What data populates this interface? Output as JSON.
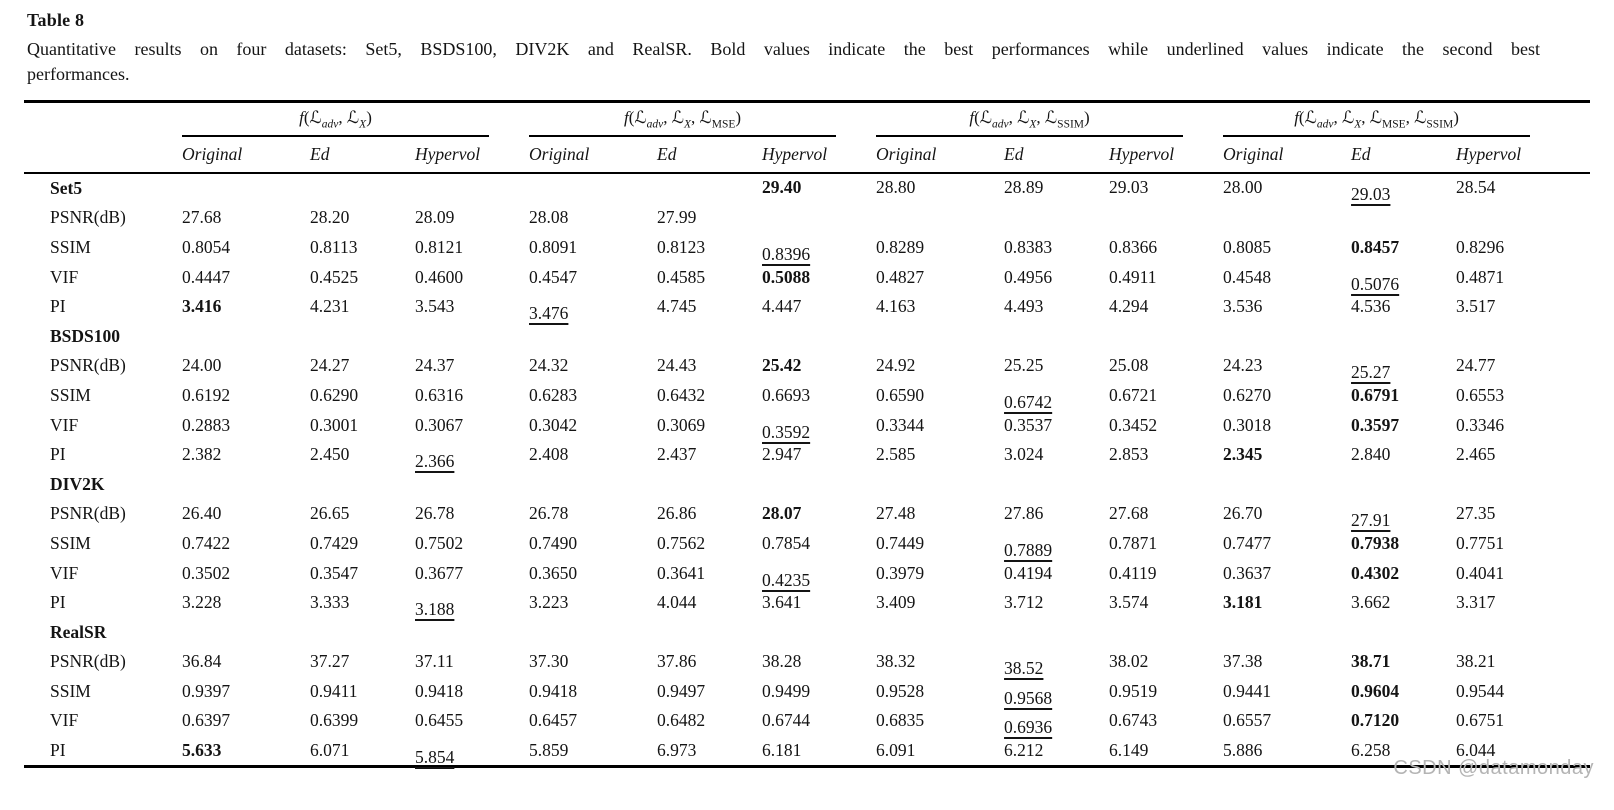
{
  "page": {
    "title": "Table 8",
    "caption_line1": "Quantitative results on four datasets: Set5, BSDS100, DIV2K and RealSR. Bold values indicate the best performances while underlined values indicate the second best",
    "caption_line2": "performances.",
    "watermark": "CSDN @datamonday"
  },
  "table": {
    "func_symbol": "f",
    "loss_symbol": "ℒ",
    "groups": [
      {
        "args": [
          {
            "t": "adv",
            "italic": true
          },
          {
            "t": "X",
            "italic": true
          }
        ]
      },
      {
        "args": [
          {
            "t": "adv",
            "italic": true
          },
          {
            "t": "X",
            "italic": true
          },
          {
            "t": "MSE",
            "italic": false
          }
        ]
      },
      {
        "args": [
          {
            "t": "adv",
            "italic": true
          },
          {
            "t": "X",
            "italic": true
          },
          {
            "t": "SSIM",
            "italic": false
          }
        ]
      },
      {
        "args": [
          {
            "t": "adv",
            "italic": true
          },
          {
            "t": "X",
            "italic": true
          },
          {
            "t": "MSE",
            "italic": false
          },
          {
            "t": "SSIM",
            "italic": false
          }
        ]
      }
    ],
    "subcolumns": [
      "Original",
      "Ed",
      "Hypervol"
    ],
    "sections": [
      {
        "name": "Set5",
        "rows": [
          {
            "label": "PSNR(dB)",
            "cells": [
              "27.68",
              "28.20",
              "28.09",
              "28.08",
              "27.99",
              {
                "v": "29.40",
                "b": true,
                "raise": true
              },
              {
                "v": "28.80",
                "raise": true
              },
              {
                "v": "28.89",
                "raise": true
              },
              {
                "v": "29.03",
                "raise": true
              },
              {
                "v": "28.00",
                "raise": true
              },
              {
                "v": "29.03",
                "u": true,
                "raise": true
              },
              {
                "v": "28.54",
                "raise": true
              }
            ]
          },
          {
            "label": "SSIM",
            "cells": [
              "0.8054",
              "0.8113",
              "0.8121",
              "0.8091",
              "0.8123",
              {
                "v": "0.8396",
                "u": true
              },
              "0.8289",
              "0.8383",
              "0.8366",
              "0.8085",
              {
                "v": "0.8457",
                "b": true
              },
              "0.8296"
            ]
          },
          {
            "label": "VIF",
            "cells": [
              "0.4447",
              "0.4525",
              "0.4600",
              "0.4547",
              "0.4585",
              {
                "v": "0.5088",
                "b": true
              },
              "0.4827",
              "0.4956",
              "0.4911",
              "0.4548",
              {
                "v": "0.5076",
                "u": true
              },
              "0.4871"
            ]
          },
          {
            "label": "PI",
            "cells": [
              {
                "v": "3.416",
                "b": true
              },
              "4.231",
              "3.543",
              {
                "v": "3.476",
                "u": true
              },
              "4.745",
              "4.447",
              "4.163",
              "4.493",
              "4.294",
              "3.536",
              "4.536",
              "3.517"
            ]
          }
        ]
      },
      {
        "name": "BSDS100",
        "rows": [
          {
            "label": "PSNR(dB)",
            "cells": [
              "24.00",
              "24.27",
              "24.37",
              "24.32",
              "24.43",
              {
                "v": "25.42",
                "b": true
              },
              "24.92",
              "25.25",
              "25.08",
              "24.23",
              {
                "v": "25.27",
                "u": true
              },
              "24.77"
            ]
          },
          {
            "label": "SSIM",
            "cells": [
              "0.6192",
              "0.6290",
              "0.6316",
              "0.6283",
              "0.6432",
              "0.6693",
              "0.6590",
              {
                "v": "0.6742",
                "u": true
              },
              "0.6721",
              "0.6270",
              {
                "v": "0.6791",
                "b": true
              },
              "0.6553"
            ]
          },
          {
            "label": "VIF",
            "cells": [
              "0.2883",
              "0.3001",
              "0.3067",
              "0.3042",
              "0.3069",
              {
                "v": "0.3592",
                "u": true
              },
              "0.3344",
              "0.3537",
              "0.3452",
              "0.3018",
              {
                "v": "0.3597",
                "b": true
              },
              "0.3346"
            ]
          },
          {
            "label": "PI",
            "cells": [
              "2.382",
              "2.450",
              {
                "v": "2.366",
                "u": true
              },
              "2.408",
              "2.437",
              "2.947",
              "2.585",
              "3.024",
              "2.853",
              {
                "v": "2.345",
                "b": true
              },
              "2.840",
              "2.465"
            ]
          }
        ]
      },
      {
        "name": "DIV2K",
        "rows": [
          {
            "label": "PSNR(dB)",
            "cells": [
              "26.40",
              "26.65",
              "26.78",
              "26.78",
              "26.86",
              {
                "v": "28.07",
                "b": true
              },
              "27.48",
              "27.86",
              "27.68",
              "26.70",
              {
                "v": "27.91",
                "u": true
              },
              "27.35"
            ]
          },
          {
            "label": "SSIM",
            "cells": [
              "0.7422",
              "0.7429",
              "0.7502",
              "0.7490",
              "0.7562",
              "0.7854",
              "0.7449",
              {
                "v": "0.7889",
                "u": true
              },
              "0.7871",
              "0.7477",
              {
                "v": "0.7938",
                "b": true
              },
              "0.7751"
            ]
          },
          {
            "label": "VIF",
            "cells": [
              "0.3502",
              "0.3547",
              "0.3677",
              "0.3650",
              "0.3641",
              {
                "v": "0.4235",
                "u": true
              },
              "0.3979",
              "0.4194",
              "0.4119",
              "0.3637",
              {
                "v": "0.4302",
                "b": true
              },
              "0.4041"
            ]
          },
          {
            "label": "PI",
            "cells": [
              "3.228",
              "3.333",
              {
                "v": "3.188",
                "u": true
              },
              "3.223",
              "4.044",
              "3.641",
              "3.409",
              "3.712",
              "3.574",
              {
                "v": "3.181",
                "b": true
              },
              "3.662",
              "3.317"
            ]
          }
        ]
      },
      {
        "name": "RealSR",
        "rows": [
          {
            "label": "PSNR(dB)",
            "cells": [
              "36.84",
              "37.27",
              "37.11",
              "37.30",
              "37.86",
              "38.28",
              "38.32",
              {
                "v": "38.52",
                "u": true
              },
              "38.02",
              "37.38",
              {
                "v": "38.71",
                "b": true
              },
              "38.21"
            ]
          },
          {
            "label": "SSIM",
            "cells": [
              "0.9397",
              "0.9411",
              "0.9418",
              "0.9418",
              "0.9497",
              "0.9499",
              "0.9528",
              {
                "v": "0.9568",
                "u": true
              },
              "0.9519",
              "0.9441",
              {
                "v": "0.9604",
                "b": true
              },
              "0.9544"
            ]
          },
          {
            "label": "VIF",
            "cells": [
              "0.6397",
              "0.6399",
              "0.6455",
              "0.6457",
              "0.6482",
              "0.6744",
              "0.6835",
              {
                "v": "0.6936",
                "u": true
              },
              "0.6743",
              "0.6557",
              {
                "v": "0.7120",
                "b": true
              },
              "0.6751"
            ]
          },
          {
            "label": "PI",
            "cells": [
              {
                "v": "5.633",
                "b": true
              },
              "6.071",
              {
                "v": "5.854",
                "u": true
              },
              "5.859",
              "6.973",
              "6.181",
              "6.091",
              "6.212",
              "6.149",
              "5.886",
              "6.258",
              "6.044"
            ]
          }
        ]
      }
    ]
  }
}
